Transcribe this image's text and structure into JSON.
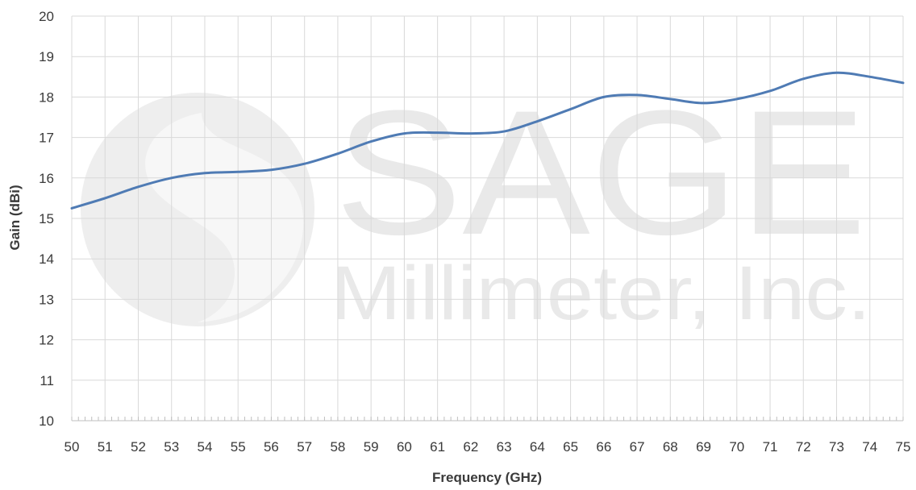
{
  "chart_data": {
    "type": "line",
    "title": "",
    "xlabel": "Frequency (GHz)",
    "ylabel": "Gain (dBi)",
    "xlim": [
      50,
      75
    ],
    "ylim": [
      10,
      20
    ],
    "x_ticks": [
      "50",
      "51",
      "52",
      "53",
      "54",
      "55",
      "56",
      "57",
      "58",
      "59",
      "60",
      "61",
      "62",
      "63",
      "64",
      "65",
      "66",
      "67",
      "68",
      "69",
      "70",
      "71",
      "72",
      "73",
      "74",
      "75"
    ],
    "y_ticks": [
      "10",
      "11",
      "12",
      "13",
      "14",
      "15",
      "16",
      "17",
      "18",
      "19",
      "20"
    ],
    "grid": true,
    "legend": "none",
    "series": [
      {
        "color": "#4f7bb4",
        "x": [
          50,
          51,
          52,
          53,
          54,
          55,
          56,
          57,
          58,
          59,
          60,
          61,
          62,
          63,
          64,
          65,
          66,
          67,
          68,
          69,
          70,
          71,
          72,
          73,
          74,
          75
        ],
        "y": [
          15.25,
          15.5,
          15.78,
          16.0,
          16.12,
          16.15,
          16.2,
          16.35,
          16.6,
          16.9,
          17.1,
          17.12,
          17.1,
          17.15,
          17.4,
          17.7,
          18.0,
          18.05,
          17.95,
          17.85,
          17.95,
          18.15,
          18.45,
          18.6,
          18.5,
          18.35
        ]
      }
    ]
  },
  "watermark": {
    "brand": "SAGE",
    "sub": "Millimeter, Inc."
  }
}
